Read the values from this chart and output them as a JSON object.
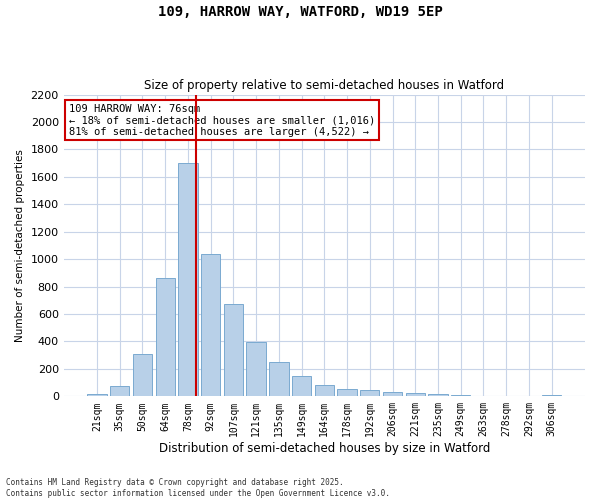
{
  "title_line1": "109, HARROW WAY, WATFORD, WD19 5EP",
  "title_line2": "Size of property relative to semi-detached houses in Watford",
  "xlabel": "Distribution of semi-detached houses by size in Watford",
  "ylabel": "Number of semi-detached properties",
  "annotation_title": "109 HARROW WAY: 76sqm",
  "annotation_line1": "← 18% of semi-detached houses are smaller (1,016)",
  "annotation_line2": "81% of semi-detached houses are larger (4,522) →",
  "footer_line1": "Contains HM Land Registry data © Crown copyright and database right 2025.",
  "footer_line2": "Contains public sector information licensed under the Open Government Licence v3.0.",
  "categories": [
    "21sqm",
    "35sqm",
    "50sqm",
    "64sqm",
    "78sqm",
    "92sqm",
    "107sqm",
    "121sqm",
    "135sqm",
    "149sqm",
    "164sqm",
    "178sqm",
    "192sqm",
    "206sqm",
    "221sqm",
    "235sqm",
    "249sqm",
    "263sqm",
    "278sqm",
    "292sqm",
    "306sqm"
  ],
  "values": [
    20,
    75,
    310,
    860,
    1700,
    1035,
    675,
    395,
    250,
    150,
    80,
    50,
    45,
    35,
    25,
    15,
    10,
    5,
    5,
    2,
    10
  ],
  "bar_color": "#b8d0e8",
  "bar_edge_color": "#7aaad0",
  "redline_index": 4,
  "redline_color": "#cc0000",
  "ylim_max": 2200,
  "ytick_step": 200,
  "grid_color": "#c8d4e8",
  "background_color": "#ffffff",
  "annotation_box_color": "#cc0000",
  "fig_width": 6.0,
  "fig_height": 5.0,
  "dpi": 100
}
